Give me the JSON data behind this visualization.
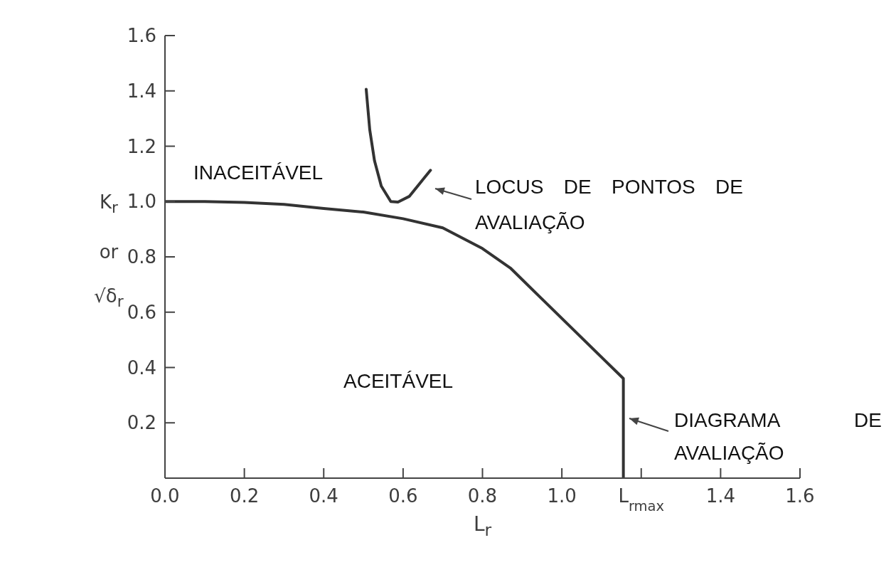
{
  "chart_data": {
    "type": "line",
    "xlabel": "L$_{r}$",
    "ylabel": "K$_{r}$ or √δ$_{r}$",
    "xlim": [
      0,
      1.6
    ],
    "ylim": [
      0,
      1.6
    ],
    "xticks": [
      {
        "value": 0,
        "label": "0.0"
      },
      0.2,
      0.4,
      0.6,
      0.8,
      {
        "value": 1,
        "label": "1.0"
      },
      {
        "value": 1.2,
        "label": "L$_{rmax}$"
      },
      1.4,
      1.6
    ],
    "yticks": [
      0.2,
      0.4,
      0.6,
      0.8,
      {
        "value": 1,
        "label": "1.0"
      },
      1.2,
      1.4,
      1.6
    ],
    "marker": "none",
    "line_style": "solid",
    "series": [
      {
        "color": "#333333",
        "x": [
          0,
          0.1,
          0.2,
          0.3,
          0.4,
          0.5,
          0.6,
          0.7,
          0.8,
          0.87,
          1.155,
          1.155
        ],
        "values": [
          1.0,
          1.0,
          0.997,
          0.99,
          0.975,
          0.962,
          0.938,
          0.905,
          0.83,
          0.76,
          0.36,
          0
        ]
      },
      {
        "color": "#333333",
        "x": [
          0.507,
          0.516,
          0.528,
          0.545,
          0.569,
          0.587,
          0.616,
          0.645,
          0.669
        ],
        "values": [
          1.406,
          1.259,
          1.147,
          1.056,
          1.0,
          0.998,
          1.019,
          1.071,
          1.113
        ]
      }
    ],
    "annotations": [
      "INACEITÁVEL",
      "ACEITÁVEL",
      "LOCUS DE PONTOS DE AVALIAÇÃO",
      "DIAGRAMA DE AVALIAÇÃO"
    ]
  }
}
